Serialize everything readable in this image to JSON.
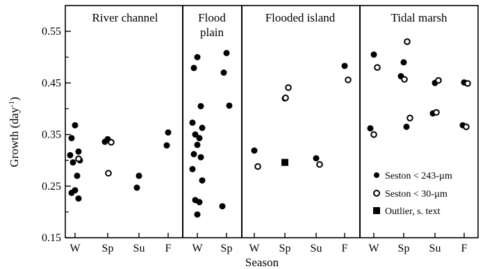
{
  "chart_data": {
    "type": "scatter",
    "ylabel": "Growth (day",
    "ylabel_sup": "-1",
    "ylabel_close": ")",
    "xlabel": "Season",
    "ylim": [
      0.15,
      0.6
    ],
    "y_ticks": [
      0.15,
      0.25,
      0.35,
      0.45,
      0.55
    ],
    "y_tick_labels": [
      "0.15",
      "0.25",
      "0.35",
      "0.45",
      "0.55"
    ],
    "grid": false,
    "legend_position": "bottom-right",
    "legend": [
      {
        "key": "filled",
        "label": "Seston < 243-µm"
      },
      {
        "key": "open",
        "label": "Seston < 30-µm"
      },
      {
        "key": "outlier",
        "label": "Outlier, s. text"
      }
    ],
    "panels": [
      {
        "title_lines": [
          "River channel"
        ],
        "seasons": [
          "W",
          "Sp",
          "Su",
          "F"
        ],
        "filled": [
          {
            "season": "W",
            "y": 0.368
          },
          {
            "season": "W",
            "y": 0.343
          },
          {
            "season": "W",
            "y": 0.317
          },
          {
            "season": "W",
            "y": 0.31
          },
          {
            "season": "W",
            "y": 0.3
          },
          {
            "season": "W",
            "y": 0.296
          },
          {
            "season": "W",
            "y": 0.27
          },
          {
            "season": "W",
            "y": 0.242
          },
          {
            "season": "W",
            "y": 0.237
          },
          {
            "season": "W",
            "y": 0.226
          },
          {
            "season": "Sp",
            "y": 0.341
          },
          {
            "season": "Sp",
            "y": 0.336
          },
          {
            "season": "Su",
            "y": 0.27
          },
          {
            "season": "Su",
            "y": 0.247
          },
          {
            "season": "F",
            "y": 0.354
          },
          {
            "season": "F",
            "y": 0.329
          }
        ],
        "open": [
          {
            "season": "W",
            "y": 0.303
          },
          {
            "season": "Sp",
            "y": 0.335
          },
          {
            "season": "Sp",
            "y": 0.275
          }
        ],
        "outlier": []
      },
      {
        "title_lines": [
          "Flood",
          "plain"
        ],
        "seasons": [
          "W",
          "Sp"
        ],
        "filled": [
          {
            "season": "W",
            "y": 0.5
          },
          {
            "season": "W",
            "y": 0.479
          },
          {
            "season": "W",
            "y": 0.405
          },
          {
            "season": "W",
            "y": 0.373
          },
          {
            "season": "W",
            "y": 0.363
          },
          {
            "season": "W",
            "y": 0.35
          },
          {
            "season": "W",
            "y": 0.343
          },
          {
            "season": "W",
            "y": 0.33
          },
          {
            "season": "W",
            "y": 0.312
          },
          {
            "season": "W",
            "y": 0.306
          },
          {
            "season": "W",
            "y": 0.283
          },
          {
            "season": "W",
            "y": 0.261
          },
          {
            "season": "W",
            "y": 0.223
          },
          {
            "season": "W",
            "y": 0.219
          },
          {
            "season": "W",
            "y": 0.195
          },
          {
            "season": "Sp",
            "y": 0.508
          },
          {
            "season": "Sp",
            "y": 0.47
          },
          {
            "season": "Sp",
            "y": 0.406
          },
          {
            "season": "Sp",
            "y": 0.211
          }
        ],
        "open": [],
        "outlier": []
      },
      {
        "title_lines": [
          "Flooded island"
        ],
        "seasons": [
          "W",
          "Sp",
          "Su",
          "F"
        ],
        "filled": [
          {
            "season": "W",
            "y": 0.319
          },
          {
            "season": "Sp",
            "y": 0.42
          },
          {
            "season": "Su",
            "y": 0.304
          },
          {
            "season": "F",
            "y": 0.483
          }
        ],
        "open": [
          {
            "season": "W",
            "y": 0.288
          },
          {
            "season": "Sp",
            "y": 0.441
          },
          {
            "season": "Sp",
            "y": 0.421
          },
          {
            "season": "Su",
            "y": 0.292
          },
          {
            "season": "F",
            "y": 0.456
          }
        ],
        "outlier": [
          {
            "season": "Sp",
            "y": 0.296
          }
        ]
      },
      {
        "title_lines": [
          "Tidal marsh"
        ],
        "seasons": [
          "W",
          "Sp",
          "Su",
          "F"
        ],
        "filled": [
          {
            "season": "W",
            "y": 0.505
          },
          {
            "season": "W",
            "y": 0.362
          },
          {
            "season": "Sp",
            "y": 0.49
          },
          {
            "season": "Sp",
            "y": 0.463
          },
          {
            "season": "Sp",
            "y": 0.365
          },
          {
            "season": "Su",
            "y": 0.45
          },
          {
            "season": "Su",
            "y": 0.391
          },
          {
            "season": "F",
            "y": 0.451
          },
          {
            "season": "F",
            "y": 0.368
          }
        ],
        "open": [
          {
            "season": "W",
            "y": 0.48
          },
          {
            "season": "W",
            "y": 0.35
          },
          {
            "season": "Sp",
            "y": 0.53
          },
          {
            "season": "Sp",
            "y": 0.457
          },
          {
            "season": "Sp",
            "y": 0.382
          },
          {
            "season": "Su",
            "y": 0.455
          },
          {
            "season": "Su",
            "y": 0.393
          },
          {
            "season": "F",
            "y": 0.449
          },
          {
            "season": "F",
            "y": 0.365
          }
        ],
        "outlier": []
      }
    ]
  }
}
